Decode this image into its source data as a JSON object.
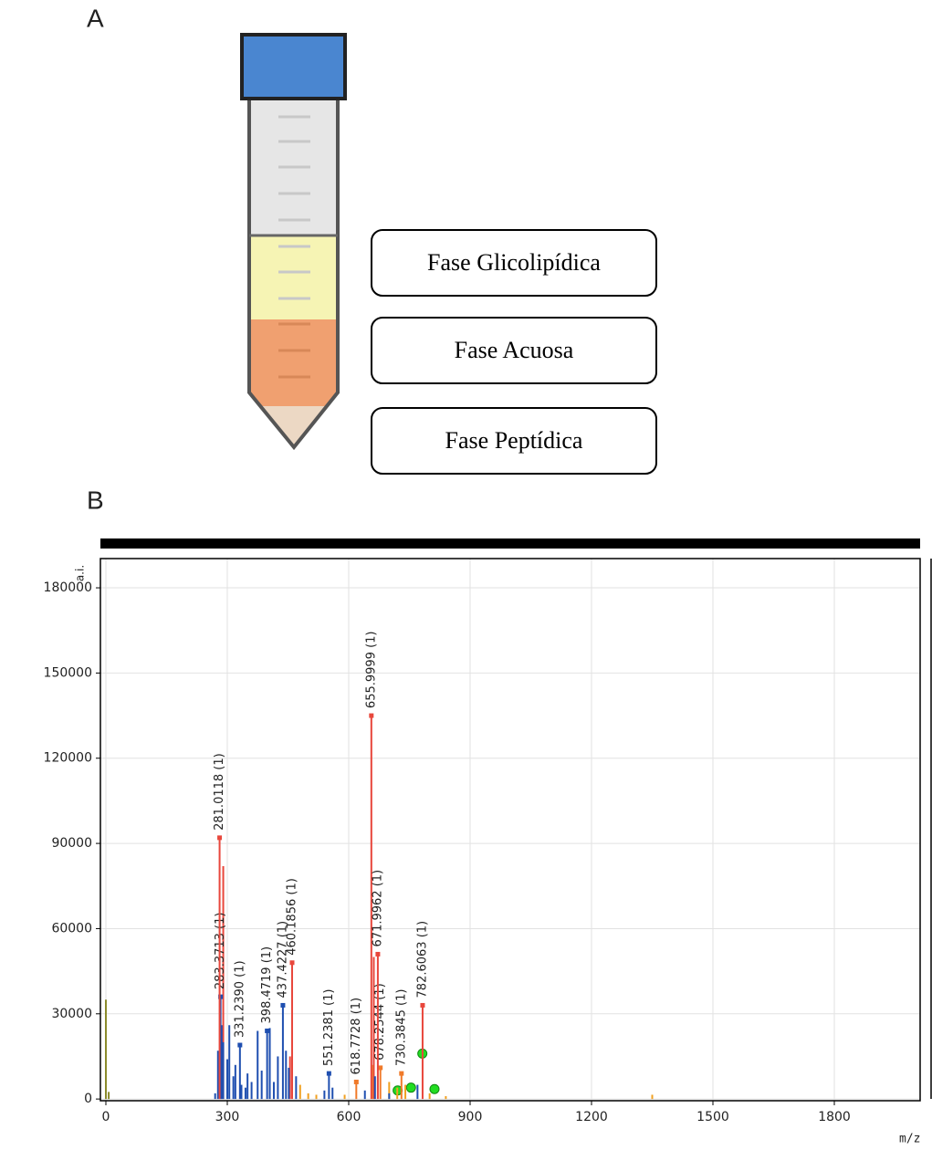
{
  "panel_a": {
    "label": "A",
    "phases": [
      "Fase Glicolipídica",
      "Fase Acuosa",
      "Fase Peptídica"
    ]
  },
  "panel_b": {
    "label": "B"
  },
  "chart_data": {
    "type": "stem",
    "y_label": "a.i.",
    "x_label": "m/z",
    "xlim": [
      -13.5,
      2012
    ],
    "ylim": [
      -600,
      190300
    ],
    "xticks": [
      0,
      300,
      600,
      900,
      1200,
      1500,
      1800
    ],
    "yticks": [
      0,
      30000,
      60000,
      90000,
      120000,
      150000,
      180000
    ],
    "grid": true,
    "series": [
      {
        "color": "#e8473c",
        "marker": "square",
        "x": [
          281.0118,
          460.1856,
          655.9999,
          671.9962,
          782.6063
        ],
        "values": [
          92000,
          48000,
          135000,
          51000,
          33000
        ],
        "labels": [
          "281.0118 (1)",
          "460.1856 (1)",
          "655.9999 (1)",
          "671.9962 (1)",
          "782.6063 (1)"
        ]
      },
      {
        "color": "#1f4fb0",
        "marker": "square",
        "x": [
          283.3713,
          331.239,
          398.4719,
          437.4227,
          551.2381
        ],
        "values": [
          36000,
          19000,
          24000,
          33000,
          9000
        ],
        "labels": [
          "283.3713 (1)",
          "331.2390 (1)",
          "398.4719 (1)",
          "437.4227 (1)",
          "551.2381 (1)"
        ]
      },
      {
        "color": "#f07a2a",
        "marker": "square",
        "x": [
          618.7728,
          678.2544,
          730.3845
        ],
        "values": [
          6000,
          11000,
          9000
        ],
        "labels": [
          "618.7728 (1)",
          "678.2544 (1)",
          "730.3845 (1)"
        ]
      },
      {
        "color": "#1f4fb0",
        "x": [
          270,
          277,
          286,
          290,
          300,
          305,
          315,
          320,
          335,
          345,
          350,
          360,
          375,
          385,
          405,
          415,
          425,
          445,
          452,
          470,
          540,
          560,
          640,
          665,
          700,
          770
        ],
        "values": [
          2000,
          17000,
          26000,
          20000,
          14000,
          26000,
          8000,
          12000,
          5000,
          4000,
          9000,
          6000,
          24000,
          10000,
          25000,
          6000,
          15000,
          17000,
          11000,
          8000,
          3000,
          4000,
          3000,
          8000,
          2000,
          5000
        ]
      },
      {
        "color": "#e8473c",
        "x": [
          290,
          455,
          662
        ],
        "values": [
          82000,
          15000,
          50000
        ]
      },
      {
        "color": "#f0a020",
        "x": [
          480,
          500,
          520,
          590,
          660,
          700,
          720,
          740,
          800,
          840,
          1350
        ],
        "values": [
          5000,
          2000,
          1500,
          1500,
          12000,
          6000,
          4000,
          5000,
          2000,
          1000,
          1500
        ]
      },
      {
        "color": "#8a8a2a",
        "x": [
          0,
          7
        ],
        "values": [
          35000,
          2500
        ]
      },
      {
        "color": "#22dd22",
        "marker": "circle",
        "x": [
          721,
          754,
          782,
          812
        ],
        "values": [
          3000,
          4000,
          16000,
          3500
        ]
      }
    ]
  }
}
